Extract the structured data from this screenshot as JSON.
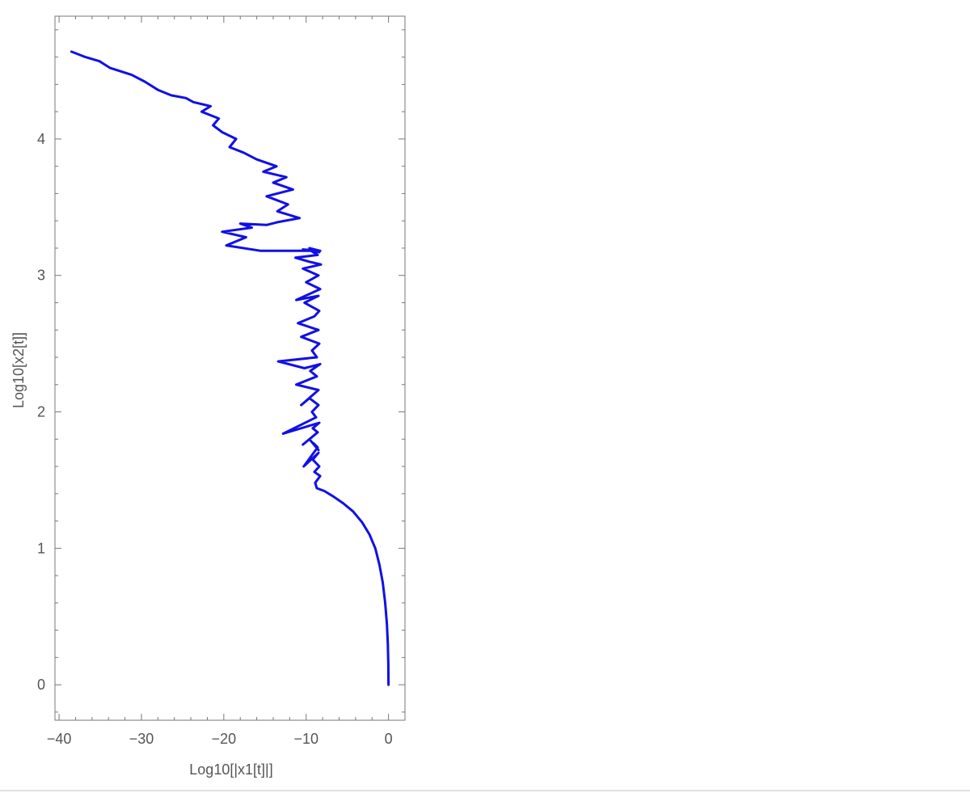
{
  "chart_data": {
    "type": "line",
    "title": "",
    "xlabel": "Log10[|x1[t]|]",
    "ylabel": "Log10[x2[t]]",
    "xlim": [
      -40.5,
      2
    ],
    "ylim": [
      -0.26,
      4.9
    ],
    "x_ticks": [
      -40,
      -30,
      -20,
      -10,
      0
    ],
    "x_tick_labels": [
      "−40",
      "−30",
      "−20",
      "−10",
      "0"
    ],
    "y_ticks": [
      0,
      1,
      2,
      3,
      4
    ],
    "y_tick_labels": [
      "0",
      "1",
      "2",
      "3",
      "4"
    ],
    "grid": false,
    "series": [
      {
        "color": "#1010e6",
        "x": [
          0,
          -0.02,
          -0.08,
          -0.2,
          -0.4,
          -0.7,
          -1.1,
          -1.6,
          -2.3,
          -3.2,
          -4.3,
          -5.5,
          -6.7,
          -7.8,
          -8.7,
          -8.9,
          -8.3,
          -9.0,
          -8.4,
          -9.2,
          -8.5,
          -10.3,
          -8.6,
          -9.1,
          -8.5,
          -9.6,
          -10.4,
          -8.6,
          -9.2,
          -8.4,
          -12.8,
          -8.8,
          -9.3,
          -8.5,
          -9.6,
          -10.6,
          -8.5,
          -11.2,
          -8.7,
          -9.5,
          -8.3,
          -10.2,
          -13.4,
          -8.7,
          -9.3,
          -8.4,
          -10.6,
          -8.5,
          -11.0,
          -9.0,
          -8.4,
          -10.2,
          -8.5,
          -11.2,
          -8.3,
          -10.0,
          -8.5,
          -10.4,
          -8.2,
          -9.6,
          -11.3,
          -8.6,
          -9.4,
          -8.3,
          -10.4,
          -8.4,
          -9.6,
          -8.3,
          -15.5,
          -19.7,
          -17.3,
          -20.2,
          -16.6,
          -18.0,
          -14.8,
          -13.5,
          -10.8,
          -13.5,
          -12.2,
          -14.8,
          -11.6,
          -14.0,
          -12.4,
          -15.2,
          -13.6,
          -16.0,
          -17.6,
          -19.3,
          -18.5,
          -20.2,
          -21.3,
          -20.6,
          -22.7,
          -21.6,
          -23.7,
          -24.6,
          -26.4,
          -28.0,
          -29.6,
          -31.2,
          -33.8,
          -35.1,
          -36.8,
          -38.5
        ],
        "y": [
          0,
          0.15,
          0.3,
          0.45,
          0.6,
          0.75,
          0.88,
          1.0,
          1.1,
          1.19,
          1.27,
          1.33,
          1.38,
          1.42,
          1.44,
          1.48,
          1.53,
          1.56,
          1.6,
          1.65,
          1.7,
          1.6,
          1.74,
          1.77,
          1.72,
          1.8,
          1.76,
          1.85,
          1.88,
          1.92,
          1.84,
          1.96,
          2.0,
          2.05,
          2.1,
          2.05,
          2.16,
          2.2,
          2.26,
          2.3,
          2.35,
          2.32,
          2.37,
          2.4,
          2.45,
          2.5,
          2.55,
          2.6,
          2.65,
          2.7,
          2.74,
          2.8,
          2.85,
          2.82,
          2.9,
          2.95,
          3.0,
          3.05,
          3.08,
          3.1,
          3.13,
          3.15,
          3.18,
          3.18,
          3.19,
          3.17,
          3.2,
          3.18,
          3.18,
          3.22,
          3.28,
          3.32,
          3.35,
          3.38,
          3.37,
          3.39,
          3.42,
          3.47,
          3.52,
          3.58,
          3.63,
          3.68,
          3.72,
          3.76,
          3.8,
          3.85,
          3.9,
          3.94,
          4.0,
          4.05,
          4.1,
          4.15,
          4.2,
          4.24,
          4.27,
          4.3,
          4.32,
          4.36,
          4.42,
          4.47,
          4.52,
          4.57,
          4.6,
          4.64
        ]
      }
    ]
  }
}
